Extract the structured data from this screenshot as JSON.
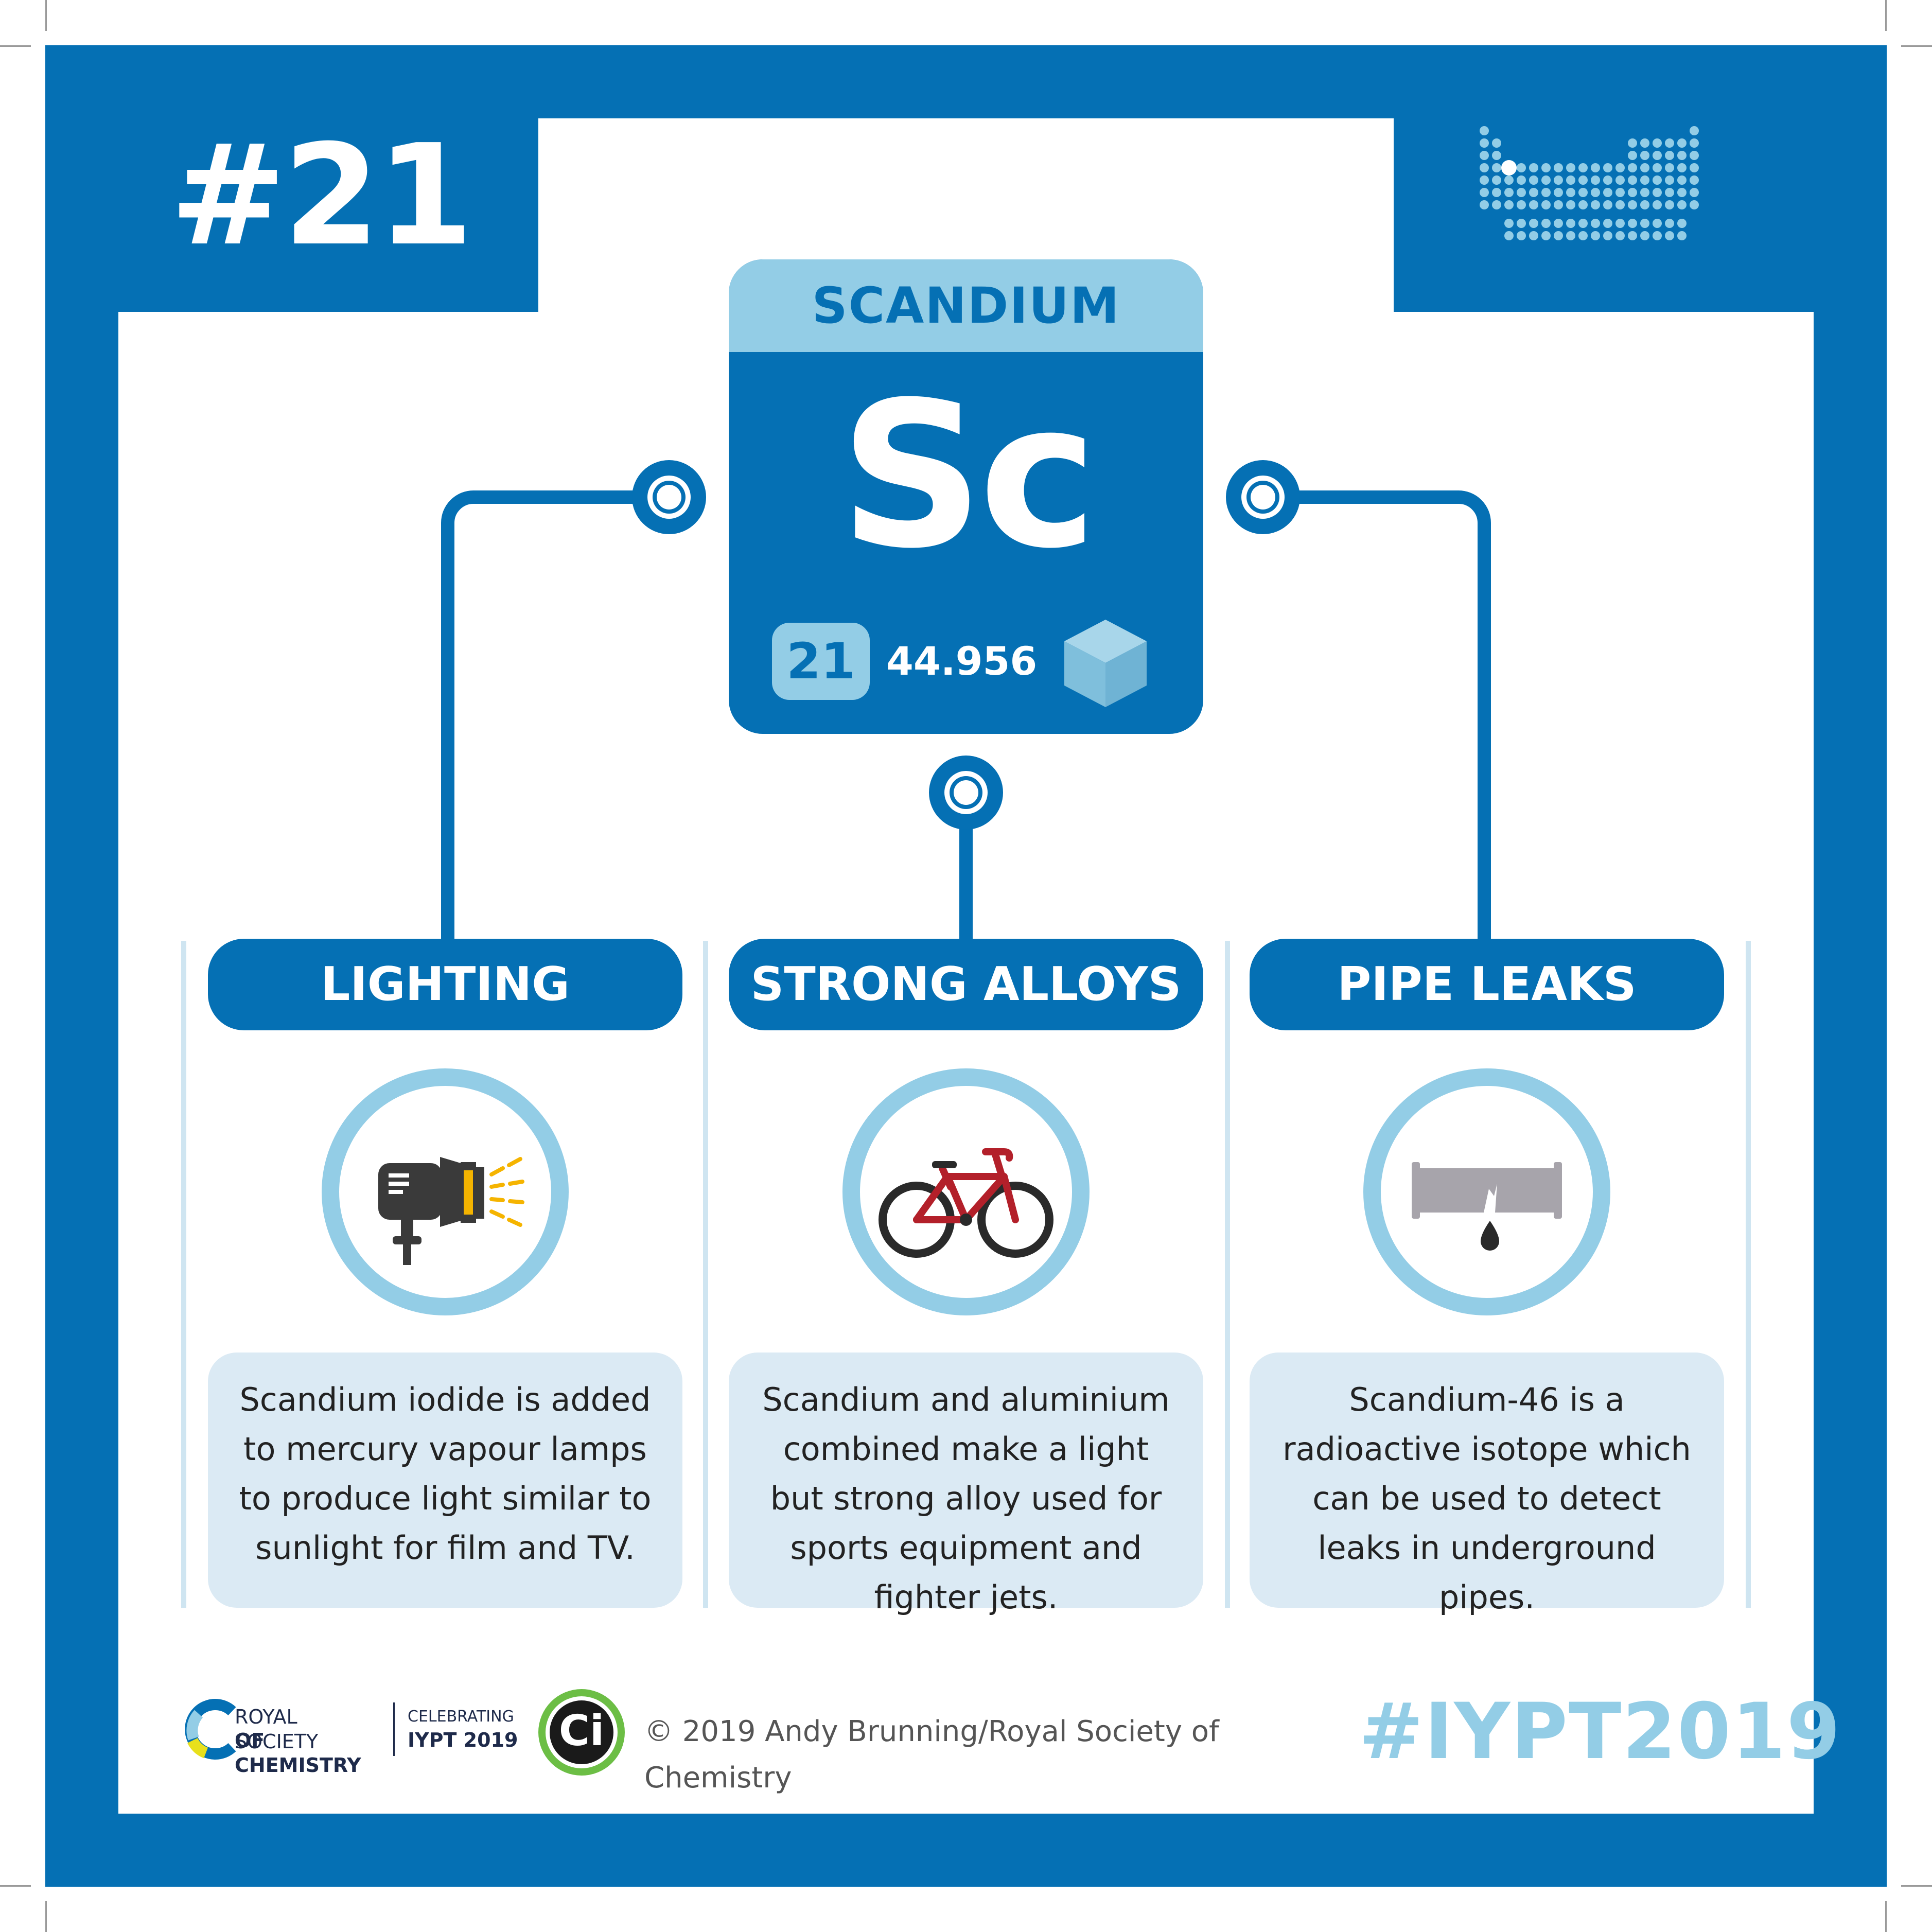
{
  "card_number": "#21",
  "element": {
    "name": "SCANDIUM",
    "symbol": "Sc",
    "atomic_number": "21",
    "atomic_mass": "44.956"
  },
  "uses": [
    {
      "title": "LIGHTING",
      "icon": "studio-light-icon",
      "description": "Scandium iodide is added to mercury vapour lamps to produce light similar to sunlight for film and TV."
    },
    {
      "title": "STRONG ALLOYS",
      "icon": "bicycle-icon",
      "description": "Scandium and aluminium combined make a light but strong alloy used for sports equipment and fighter jets."
    },
    {
      "title": "PIPE LEAKS",
      "icon": "leaking-pipe-icon",
      "description": "Scandium-46 is a radioactive isotope which can be used to detect leaks in underground pipes."
    }
  ],
  "footer": {
    "org_line1": "ROYAL SOCIETY",
    "org_line2": "OF CHEMISTRY",
    "celebrating_line1": "CELEBRATING",
    "celebrating_line2": "IYPT 2019",
    "ci_logo_text": "Ci",
    "copyright": "© 2019 Andy Brunning/Royal Society of Chemistry",
    "hashtag": "#IYPT2019"
  },
  "colors": {
    "primary_blue": "#0570b4",
    "light_blue": "#93cde6",
    "pale_blue": "#dbeaf4"
  }
}
